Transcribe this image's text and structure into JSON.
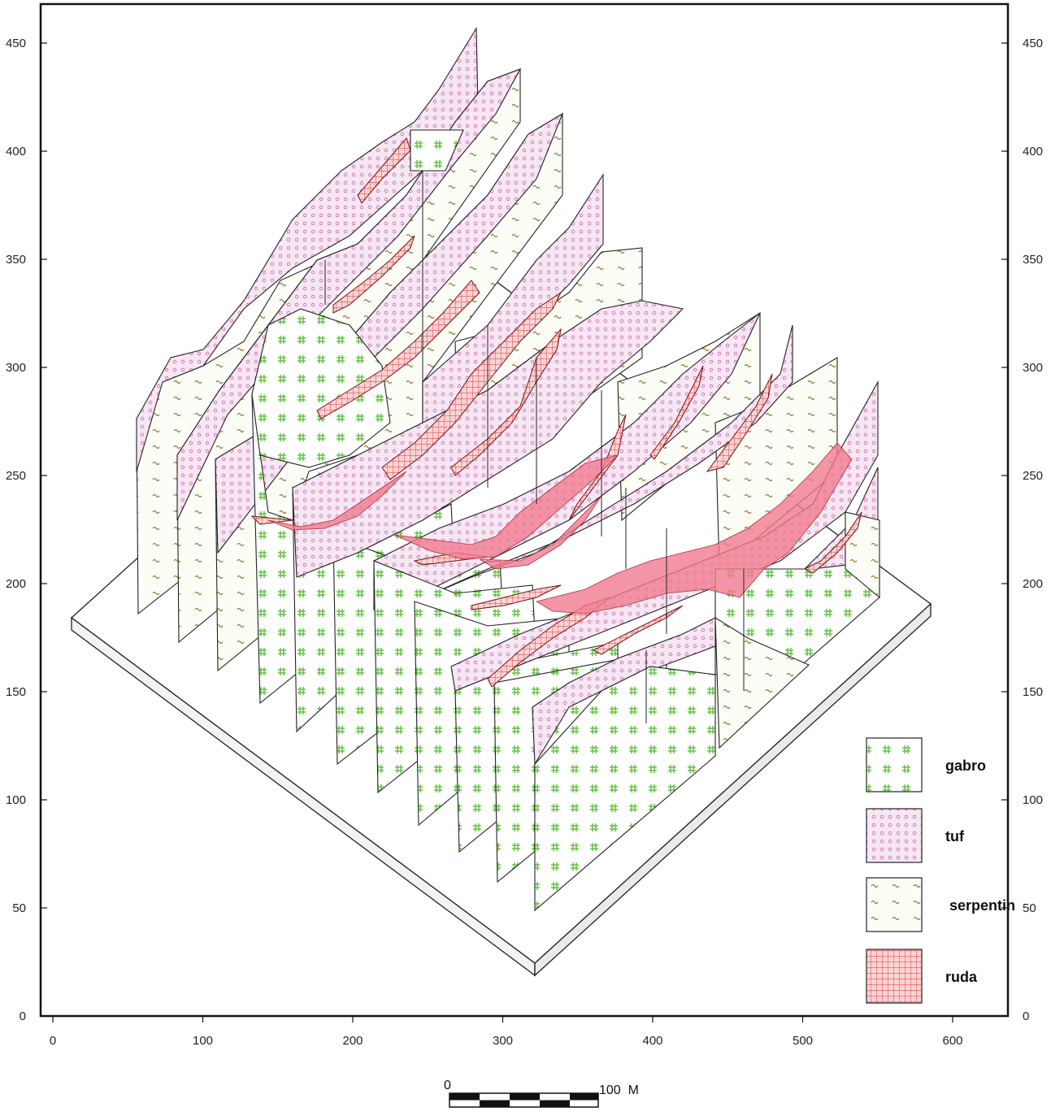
{
  "y_ticks": [
    "0",
    "50",
    "100",
    "150",
    "200",
    "250",
    "300",
    "350",
    "400",
    "450"
  ],
  "x_ticks": [
    "0",
    "100",
    "200",
    "300",
    "400",
    "500",
    "600"
  ],
  "legend": [
    {
      "key": "gabro",
      "label": "gabro",
      "pattern": "gabro"
    },
    {
      "key": "tuf",
      "label": "tuf",
      "pattern": "tuf"
    },
    {
      "key": "serpentin",
      "label": "serpentin",
      "pattern": "serpentin"
    },
    {
      "key": "ruda",
      "label": "ruda",
      "pattern": "ruda"
    }
  ],
  "scale_bar": {
    "start": "0",
    "end": "100  M"
  },
  "colors": {
    "gabro_fill": "#ffffff",
    "gabro_mark": "#5cbf3a",
    "tuf_fill": "#f7e6f3",
    "tuf_mark": "#c86aa8",
    "serpentin_fill": "#fdfdf7",
    "serpentin_mark": "#8a7a2a",
    "ruda_fill": "#f4b8b8",
    "ruda_mark": "#e0303a",
    "ore_body": "#f07a90",
    "frame": "#111111"
  }
}
